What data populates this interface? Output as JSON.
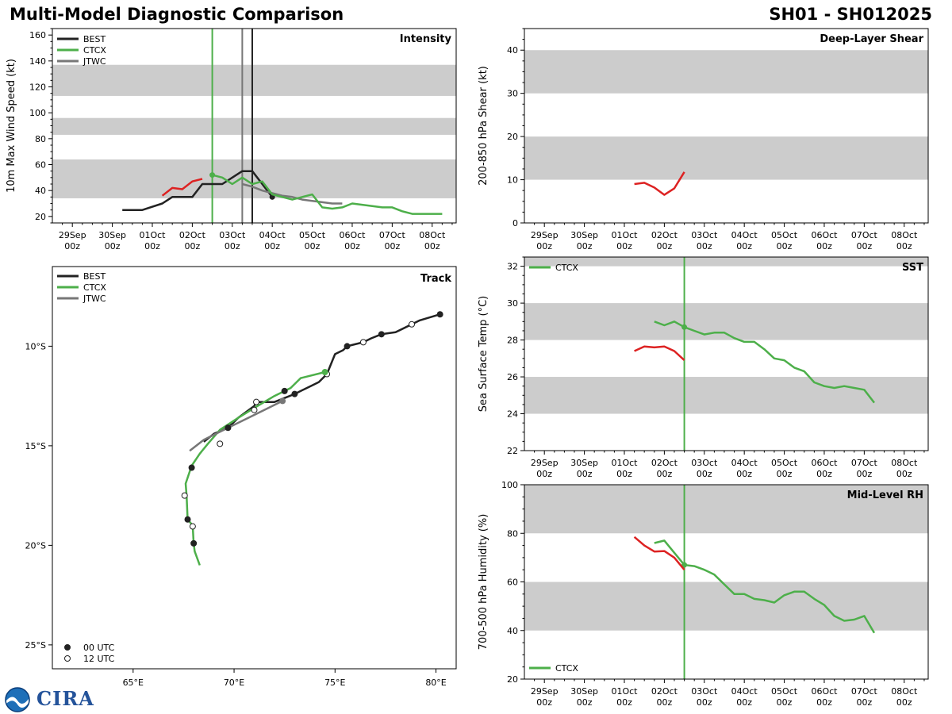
{
  "header": {
    "title_left": "Multi-Model Diagnostic Comparison",
    "title_right": "SH01 - SH012025"
  },
  "logo": {
    "text": "CIRA"
  },
  "colors": {
    "best": "#222222",
    "ctcx": "#4daf4a",
    "jtwc": "#777777",
    "red": "#dd2222",
    "band": "#cccccc"
  },
  "time_axis": {
    "labels": [
      "29Sep\n00z",
      "30Sep\n00z",
      "01Oct\n00z",
      "02Oct\n00z",
      "03Oct\n00z",
      "04Oct\n00z",
      "05Oct\n00z",
      "06Oct\n00z",
      "07Oct\n00z",
      "08Oct\n00z"
    ],
    "range_days": [
      -0.5,
      9.6
    ]
  },
  "chart_data": [
    {
      "id": "intensity",
      "type": "line",
      "title": "Intensity",
      "ylabel": "10m Max Wind Speed (kt)",
      "ylim": [
        15,
        165
      ],
      "yticks": [
        20,
        40,
        60,
        80,
        100,
        120,
        140,
        160
      ],
      "bands": [
        [
          34,
          64
        ],
        [
          83,
          96
        ],
        [
          113,
          137
        ]
      ],
      "legend": [
        "BEST",
        "CTCX",
        "JTWC"
      ],
      "vlines": [
        {
          "x": 3.5,
          "color": "ctcx"
        },
        {
          "x": 4.25,
          "color": "jtwc"
        },
        {
          "x": 4.5,
          "color": "best"
        }
      ],
      "series": [
        {
          "name": "BEST",
          "color": "best",
          "x": [
            1.25,
            1.75,
            2.25,
            2.5,
            3.0,
            3.25,
            3.75,
            4.0,
            4.25,
            4.5,
            4.75,
            5.0
          ],
          "y": [
            25,
            25,
            30,
            35,
            35,
            45,
            45,
            50,
            55,
            55,
            45,
            35
          ],
          "end_marker": true
        },
        {
          "name": "JTWC",
          "color": "jtwc",
          "x": [
            4.25,
            4.5,
            4.75,
            5.0,
            5.25,
            5.5,
            5.75,
            6.0,
            6.25,
            6.5,
            6.75
          ],
          "y": [
            45,
            43,
            40,
            38,
            36,
            35,
            33,
            32,
            31,
            30,
            30
          ]
        },
        {
          "name": "CTCX",
          "color": "ctcx",
          "x": [
            3.5,
            3.75,
            4.0,
            4.25,
            4.5,
            4.75,
            5.0,
            5.25,
            5.5,
            5.75,
            6.0,
            6.25,
            6.5,
            6.75,
            7.0,
            7.25,
            7.5,
            7.75,
            8.0,
            8.25,
            8.5,
            8.75,
            9.0,
            9.25
          ],
          "y": [
            52,
            50,
            45,
            50,
            45,
            47,
            37,
            35,
            33,
            35,
            37,
            27,
            26,
            27,
            30,
            29,
            28,
            27,
            27,
            24,
            22,
            22,
            22,
            22
          ],
          "start_marker": true
        },
        {
          "name": "red",
          "color": "red",
          "x": [
            2.25,
            2.5,
            2.75,
            3.0,
            3.25
          ],
          "y": [
            36,
            42,
            41,
            47,
            49
          ]
        }
      ]
    },
    {
      "id": "shear",
      "type": "line",
      "title": "Deep-Layer Shear",
      "ylabel": "200-850 hPa Shear (kt)",
      "ylim": [
        0,
        45
      ],
      "yticks": [
        0,
        10,
        20,
        30,
        40
      ],
      "bands": [
        [
          10,
          20
        ],
        [
          30,
          40
        ]
      ],
      "series": [
        {
          "name": "red",
          "color": "red",
          "x": [
            2.25,
            2.5,
            2.75,
            3.0,
            3.25,
            3.5
          ],
          "y": [
            9,
            9.3,
            8.2,
            6.5,
            8,
            11.8
          ]
        }
      ]
    },
    {
      "id": "sst",
      "type": "line",
      "title": "SST",
      "ylabel": "Sea Surface Temp (°C)",
      "ylim": [
        22,
        32.5
      ],
      "yticks": [
        22,
        24,
        26,
        28,
        30,
        32
      ],
      "bands": [
        [
          24,
          26
        ],
        [
          28,
          30
        ],
        [
          32,
          32.5
        ]
      ],
      "legend": [
        "CTCX"
      ],
      "vlines": [
        {
          "x": 3.5,
          "color": "ctcx"
        }
      ],
      "series": [
        {
          "name": "CTCX",
          "color": "ctcx",
          "x": [
            2.75,
            3.0,
            3.25,
            3.5,
            3.75,
            4.0,
            4.25,
            4.5,
            4.75,
            5.0,
            5.25,
            5.5,
            5.75,
            6.0,
            6.25,
            6.5,
            6.75,
            7.0,
            7.25,
            7.5,
            7.75,
            8.0,
            8.25
          ],
          "y": [
            29.0,
            28.8,
            29.0,
            28.7,
            28.5,
            28.3,
            28.4,
            28.4,
            28.1,
            27.9,
            27.9,
            27.5,
            27.0,
            26.9,
            26.5,
            26.3,
            25.7,
            25.5,
            25.4,
            25.5,
            25.4,
            25.3,
            24.6
          ],
          "dot_at": 3
        },
        {
          "name": "red",
          "color": "red",
          "x": [
            2.25,
            2.5,
            2.75,
            3.0,
            3.25,
            3.5
          ],
          "y": [
            27.4,
            27.65,
            27.6,
            27.65,
            27.4,
            26.9
          ]
        }
      ]
    },
    {
      "id": "rh",
      "type": "line",
      "title": "Mid-Level RH",
      "ylabel": "700-500 hPa Humidity (%)",
      "ylim": [
        20,
        100
      ],
      "yticks": [
        20,
        40,
        60,
        80,
        100
      ],
      "bands": [
        [
          40,
          60
        ],
        [
          80,
          100
        ]
      ],
      "legend": [
        "CTCX"
      ],
      "vlines": [
        {
          "x": 3.5,
          "color": "ctcx"
        }
      ],
      "series": [
        {
          "name": "CTCX",
          "color": "ctcx",
          "x": [
            2.75,
            3.0,
            3.25,
            3.5,
            3.75,
            4.0,
            4.25,
            4.5,
            4.75,
            5.0,
            5.25,
            5.5,
            5.75,
            6.0,
            6.25,
            6.5,
            6.75,
            7.0,
            7.25,
            7.5,
            7.75,
            8.0,
            8.25
          ],
          "y": [
            76,
            77,
            72,
            67,
            66.5,
            65,
            63,
            59,
            55,
            55,
            53,
            52.5,
            51.5,
            54.5,
            56,
            56,
            53,
            50.5,
            46,
            44,
            44.5,
            46,
            39
          ],
          "dot_at": 3
        },
        {
          "name": "red",
          "color": "red",
          "x": [
            2.25,
            2.5,
            2.75,
            3.0,
            3.25,
            3.5
          ],
          "y": [
            78.5,
            75,
            72.5,
            72.7,
            70,
            65
          ]
        }
      ]
    },
    {
      "id": "track",
      "type": "scatter",
      "title": "Track",
      "xlabel_ticks": [
        "65°E",
        "70°E",
        "75°E",
        "80°E"
      ],
      "xticks": [
        65,
        70,
        75,
        80
      ],
      "ylabel_ticks": [
        "10°S",
        "15°S",
        "20°S",
        "25°S"
      ],
      "yticks": [
        -10,
        -15,
        -20,
        -25
      ],
      "xlim": [
        61,
        81
      ],
      "ylim": [
        -26.2,
        -6.0
      ],
      "legend": [
        "BEST",
        "CTCX",
        "JTWC"
      ],
      "marker_legend": [
        "00 UTC",
        "12 UTC"
      ],
      "series": [
        {
          "name": "BEST",
          "color": "best",
          "lon": [
            80.2,
            79.2,
            78.8,
            78.0,
            77.3,
            76.8,
            76.4,
            75.8,
            75.6,
            75.4,
            75.0,
            74.6,
            74.2,
            73.8,
            73.0,
            72.5,
            72.0,
            71.1,
            71.0,
            70.2,
            69.7,
            69.0,
            68.5
          ],
          "lat": [
            -8.4,
            -8.7,
            -8.9,
            -9.3,
            -9.4,
            -9.6,
            -9.8,
            -9.95,
            -10.0,
            -10.2,
            -10.4,
            -11.4,
            -11.8,
            -12.0,
            -12.4,
            -12.6,
            -12.8,
            -12.8,
            -13.0,
            -13.6,
            -14.1,
            -14.4,
            -14.8
          ],
          "markers": [
            {
              "lon": 80.2,
              "lat": -8.4,
              "fill": true
            },
            {
              "lon": 78.8,
              "lat": -8.9,
              "fill": false
            },
            {
              "lon": 77.3,
              "lat": -9.4,
              "fill": true
            },
            {
              "lon": 76.4,
              "lat": -9.8,
              "fill": false
            },
            {
              "lon": 75.6,
              "lat": -10.0,
              "fill": true
            },
            {
              "lon": 74.6,
              "lat": -11.4,
              "fill": false
            },
            {
              "lon": 73.0,
              "lat": -12.4,
              "fill": true
            },
            {
              "lon": 71.1,
              "lat": -12.8,
              "fill": false
            },
            {
              "lon": 72.5,
              "lat": -12.25,
              "fill": true
            },
            {
              "lon": 71.0,
              "lat": -13.2,
              "fill": false
            },
            {
              "lon": 69.7,
              "lat": -14.1,
              "fill": true
            }
          ]
        },
        {
          "name": "CTCX",
          "color": "ctcx",
          "lon": [
            74.5,
            73.3,
            72.8,
            72.0,
            71.0,
            70.2,
            69.3,
            68.7,
            68.3,
            67.9,
            67.6,
            67.65,
            67.7,
            67.95,
            68.0,
            68.05,
            68.3
          ],
          "lat": [
            -11.3,
            -11.6,
            -12.1,
            -12.5,
            -13.1,
            -13.6,
            -14.2,
            -14.9,
            -15.4,
            -16.0,
            -16.9,
            -17.5,
            -18.7,
            -19.0,
            -19.9,
            -20.3,
            -21.0
          ],
          "markers": [
            {
              "lon": 74.5,
              "lat": -11.3,
              "fill": true,
              "color": "ctcx"
            },
            {
              "lon": 67.9,
              "lat": -16.1,
              "fill": true
            },
            {
              "lon": 69.3,
              "lat": -14.9,
              "fill": false
            },
            {
              "lon": 67.55,
              "lat": -17.5,
              "fill": false
            },
            {
              "lon": 67.7,
              "lat": -18.7,
              "fill": true
            },
            {
              "lon": 67.95,
              "lat": -19.05,
              "fill": false
            },
            {
              "lon": 68.0,
              "lat": -19.9,
              "fill": true
            }
          ]
        },
        {
          "name": "JTWC",
          "color": "jtwc",
          "lon": [
            72.4,
            71.5,
            70.5,
            69.5,
            68.5,
            67.8
          ],
          "lat": [
            -12.75,
            -13.2,
            -13.7,
            -14.2,
            -14.7,
            -15.25
          ],
          "markers": [
            {
              "lon": 72.4,
              "lat": -12.75,
              "fill": true,
              "color": "jtwc"
            }
          ]
        }
      ]
    }
  ]
}
